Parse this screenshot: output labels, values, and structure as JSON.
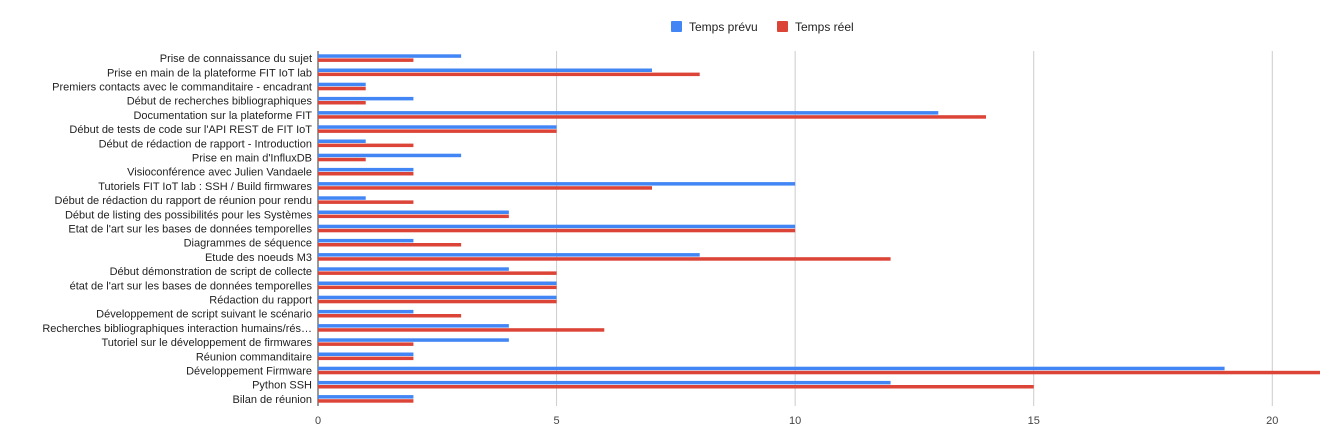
{
  "chart_data": {
    "type": "bar",
    "orientation": "horizontal",
    "categories": [
      "Prise de connaissance du sujet",
      "Prise en main de la plateforme FIT IoT lab",
      "Premiers contacts avec le commanditaire - encadrant",
      "Début de recherches bibliographiques",
      "Documentation sur la plateforme FIT",
      "Début de tests de code sur l'API REST de FIT IoT",
      "Début de rédaction de rapport - Introduction",
      "Prise en main d'InfluxDB",
      "Visioconférence avec Julien Vandaele",
      "Tutoriels FIT IoT lab : SSH / Build firmwares",
      "Début de rédaction du rapport de réunion pour rendu",
      "Début de listing des possibilités pour les Systèmes",
      "Etat de l'art sur les bases de données temporelles",
      "Diagrammes de séquence",
      "Etude des noeuds M3",
      "Début démonstration de script de collecte",
      "état de l'art sur les bases de données temporelles",
      "Rédaction du rapport",
      "Développement de script suivant le scénario",
      "Recherches bibliographiques interaction humains/rés…",
      "Tutoriel sur le développement de firmwares",
      "Réunion commanditaire",
      "Développement Firmware",
      "Python SSH",
      "Bilan de réunion"
    ],
    "series": [
      {
        "name": "Temps prévu",
        "color": "#4285f4",
        "values": [
          3,
          7,
          1,
          2,
          13,
          5,
          1,
          3,
          2,
          10,
          1,
          4,
          10,
          2,
          8,
          4,
          5,
          5,
          2,
          4,
          4,
          2,
          19,
          12,
          2
        ]
      },
      {
        "name": "Temps réel",
        "color": "#db4437",
        "values": [
          2,
          8,
          1,
          1,
          14,
          5,
          2,
          1,
          2,
          7,
          2,
          4,
          10,
          3,
          12,
          5,
          5,
          5,
          3,
          6,
          2,
          2,
          21,
          15,
          2
        ]
      }
    ],
    "xlim": [
      0,
      21
    ],
    "xticks": [
      0,
      5,
      10,
      15,
      20
    ],
    "grid": true,
    "legend_position": "top"
  }
}
